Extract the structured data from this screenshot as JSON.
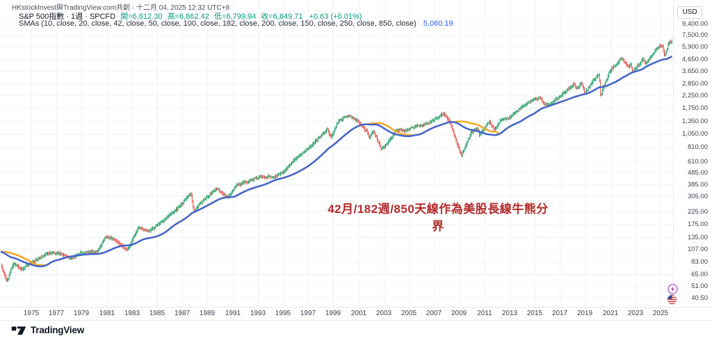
{
  "header": {
    "byline": "HKstockInvest與TradingView.com共創 · 十二月 04, 2025 12:32 UTC+8",
    "symbol_title": "S&P 500指數 · 1週 · SPCFD",
    "ohlc": [
      {
        "label": "開",
        "value": "6,812.30"
      },
      {
        "label": "高",
        "value": "6,862.42"
      },
      {
        "label": "低",
        "value": "6,799.94"
      },
      {
        "label": "收",
        "value": "6,849.71"
      }
    ],
    "change": "+0.63 (+0.01%)",
    "sma_label": "SMAs (10, close, 20, close, 42, close, 50, close, 100, close, 182, close, 200, close, 150, close, 250, close, 850, close)",
    "sma_value": "5,060.19"
  },
  "annotation": {
    "text": "42月/182週/850天線作為美股長線牛熊分界"
  },
  "price_axis": {
    "currency": "USD",
    "labels": [
      {
        "text": "9,400.00",
        "value": 9400
      },
      {
        "text": "7,500.00",
        "value": 7500
      },
      {
        "text": "5,900.00",
        "value": 5900
      },
      {
        "text": "4,650.00",
        "value": 4650
      },
      {
        "text": "3,650.00",
        "value": 3650
      },
      {
        "text": "2,850.00",
        "value": 2850
      },
      {
        "text": "2,250.00",
        "value": 2250
      },
      {
        "text": "1,750.00",
        "value": 1750
      },
      {
        "text": "1,350.00",
        "value": 1350
      },
      {
        "text": "1,050.00",
        "value": 1050
      },
      {
        "text": "810.00",
        "value": 810
      },
      {
        "text": "610.00",
        "value": 610
      },
      {
        "text": "485.00",
        "value": 485
      },
      {
        "text": "385.00",
        "value": 385
      },
      {
        "text": "305.00",
        "value": 305
      },
      {
        "text": "225.00",
        "value": 225
      },
      {
        "text": "175.00",
        "value": 175
      },
      {
        "text": "135.00",
        "value": 135
      },
      {
        "text": "107.00",
        "value": 107
      },
      {
        "text": "83.00",
        "value": 83
      },
      {
        "text": "65.00",
        "value": 65
      },
      {
        "text": "51.00",
        "value": 51
      },
      {
        "text": "40.50",
        "value": 40.5
      }
    ]
  },
  "time_axis": {
    "years": [
      "1975",
      "1977",
      "1979",
      "1981",
      "1983",
      "1985",
      "1987",
      "1989",
      "1991",
      "1993",
      "1995",
      "1997",
      "1999",
      "2001",
      "2003",
      "2005",
      "2007",
      "2009",
      "2011",
      "2013",
      "2015",
      "2017",
      "2019",
      "2021",
      "2023",
      "2025"
    ]
  },
  "footer": {
    "logo_text": "TradingView"
  },
  "colors": {
    "up": "#1a9960",
    "down": "#e04a43",
    "sma_blue": "#4165cf",
    "sma_orange": "#f5a623",
    "value_green": "#089981",
    "value_blue": "#2962ff",
    "annotation_red": "#b12b2b",
    "grid": "#f2f3f7"
  },
  "chart_data": {
    "type": "candlestick",
    "title": "S&P 500指數 weekly with 42-month/182-week/850-day SMAs (log scale)",
    "scale": "log",
    "ylabel": "USD",
    "ylim": [
      40.5,
      9400
    ],
    "x_years_visible": [
      1972.4,
      2026
    ],
    "y_ticks": [
      9400,
      7500,
      5900,
      4650,
      3650,
      2850,
      2250,
      1750,
      1350,
      1050,
      810,
      610,
      485,
      385,
      305,
      225,
      175,
      135,
      107,
      83,
      65,
      51,
      40.5
    ],
    "last_bar": {
      "open": 6812.3,
      "high": 6862.42,
      "low": 6799.94,
      "close": 6849.71,
      "change": 0.63,
      "change_pct": 0.01
    },
    "sma_last_value": 5060.19,
    "sma_window_years": 3.43,
    "price_keypoints": [
      [
        1969.0,
        98
      ],
      [
        1971.8,
        108
      ],
      [
        1972.4,
        88
      ],
      [
        1973.05,
        55
      ],
      [
        1973.6,
        80
      ],
      [
        1974.2,
        70
      ],
      [
        1974.7,
        78
      ],
      [
        1975.5,
        89
      ],
      [
        1976.3,
        100
      ],
      [
        1977.3,
        97
      ],
      [
        1978.1,
        88
      ],
      [
        1978.9,
        99
      ],
      [
        1979.6,
        102
      ],
      [
        1980.2,
        100
      ],
      [
        1980.9,
        133
      ],
      [
        1981.6,
        128
      ],
      [
        1982.6,
        104
      ],
      [
        1983.5,
        166
      ],
      [
        1984.4,
        152
      ],
      [
        1985.5,
        189
      ],
      [
        1986.6,
        240
      ],
      [
        1987.68,
        328
      ],
      [
        1987.9,
        226
      ],
      [
        1988.5,
        262
      ],
      [
        1989.7,
        352
      ],
      [
        1990.6,
        300
      ],
      [
        1991.3,
        383
      ],
      [
        1992.3,
        412
      ],
      [
        1993.3,
        450
      ],
      [
        1994.3,
        451
      ],
      [
        1995.1,
        505
      ],
      [
        1996.1,
        645
      ],
      [
        1997.1,
        790
      ],
      [
        1997.75,
        950
      ],
      [
        1998.55,
        1160
      ],
      [
        1998.78,
        980
      ],
      [
        1999.4,
        1350
      ],
      [
        2000.2,
        1505
      ],
      [
        2000.9,
        1355
      ],
      [
        2001.72,
        1095
      ],
      [
        2001.88,
        990
      ],
      [
        2002.2,
        1130
      ],
      [
        2002.78,
        800
      ],
      [
        2003.25,
        855
      ],
      [
        2004.05,
        1130
      ],
      [
        2004.65,
        1095
      ],
      [
        2005.6,
        1225
      ],
      [
        2006.6,
        1305
      ],
      [
        2007.78,
        1555
      ],
      [
        2008.25,
        1320
      ],
      [
        2008.8,
        890
      ],
      [
        2009.17,
        680
      ],
      [
        2009.95,
        1100
      ],
      [
        2010.45,
        1205
      ],
      [
        2010.62,
        1030
      ],
      [
        2011.4,
        1350
      ],
      [
        2011.78,
        1120
      ],
      [
        2012.35,
        1405
      ],
      [
        2012.95,
        1425
      ],
      [
        2013.95,
        1800
      ],
      [
        2014.95,
        2080
      ],
      [
        2015.45,
        2120
      ],
      [
        2015.72,
        1880
      ],
      [
        2016.12,
        1835
      ],
      [
        2016.95,
        2200
      ],
      [
        2018.08,
        2870
      ],
      [
        2018.32,
        2605
      ],
      [
        2018.72,
        2930
      ],
      [
        2018.98,
        2355
      ],
      [
        2019.65,
        3010
      ],
      [
        2020.12,
        3380
      ],
      [
        2020.24,
        2240
      ],
      [
        2020.95,
        3640
      ],
      [
        2021.92,
        4780
      ],
      [
        2022.05,
        4500
      ],
      [
        2022.45,
        3900
      ],
      [
        2022.62,
        4170
      ],
      [
        2022.78,
        3585
      ],
      [
        2023.35,
        4160
      ],
      [
        2023.6,
        4560
      ],
      [
        2023.85,
        4120
      ],
      [
        2024.55,
        5470
      ],
      [
        2024.97,
        6060
      ],
      [
        2025.18,
        5960
      ],
      [
        2025.32,
        4990
      ],
      [
        2025.65,
        6400
      ],
      [
        2025.95,
        6880
      ]
    ]
  }
}
